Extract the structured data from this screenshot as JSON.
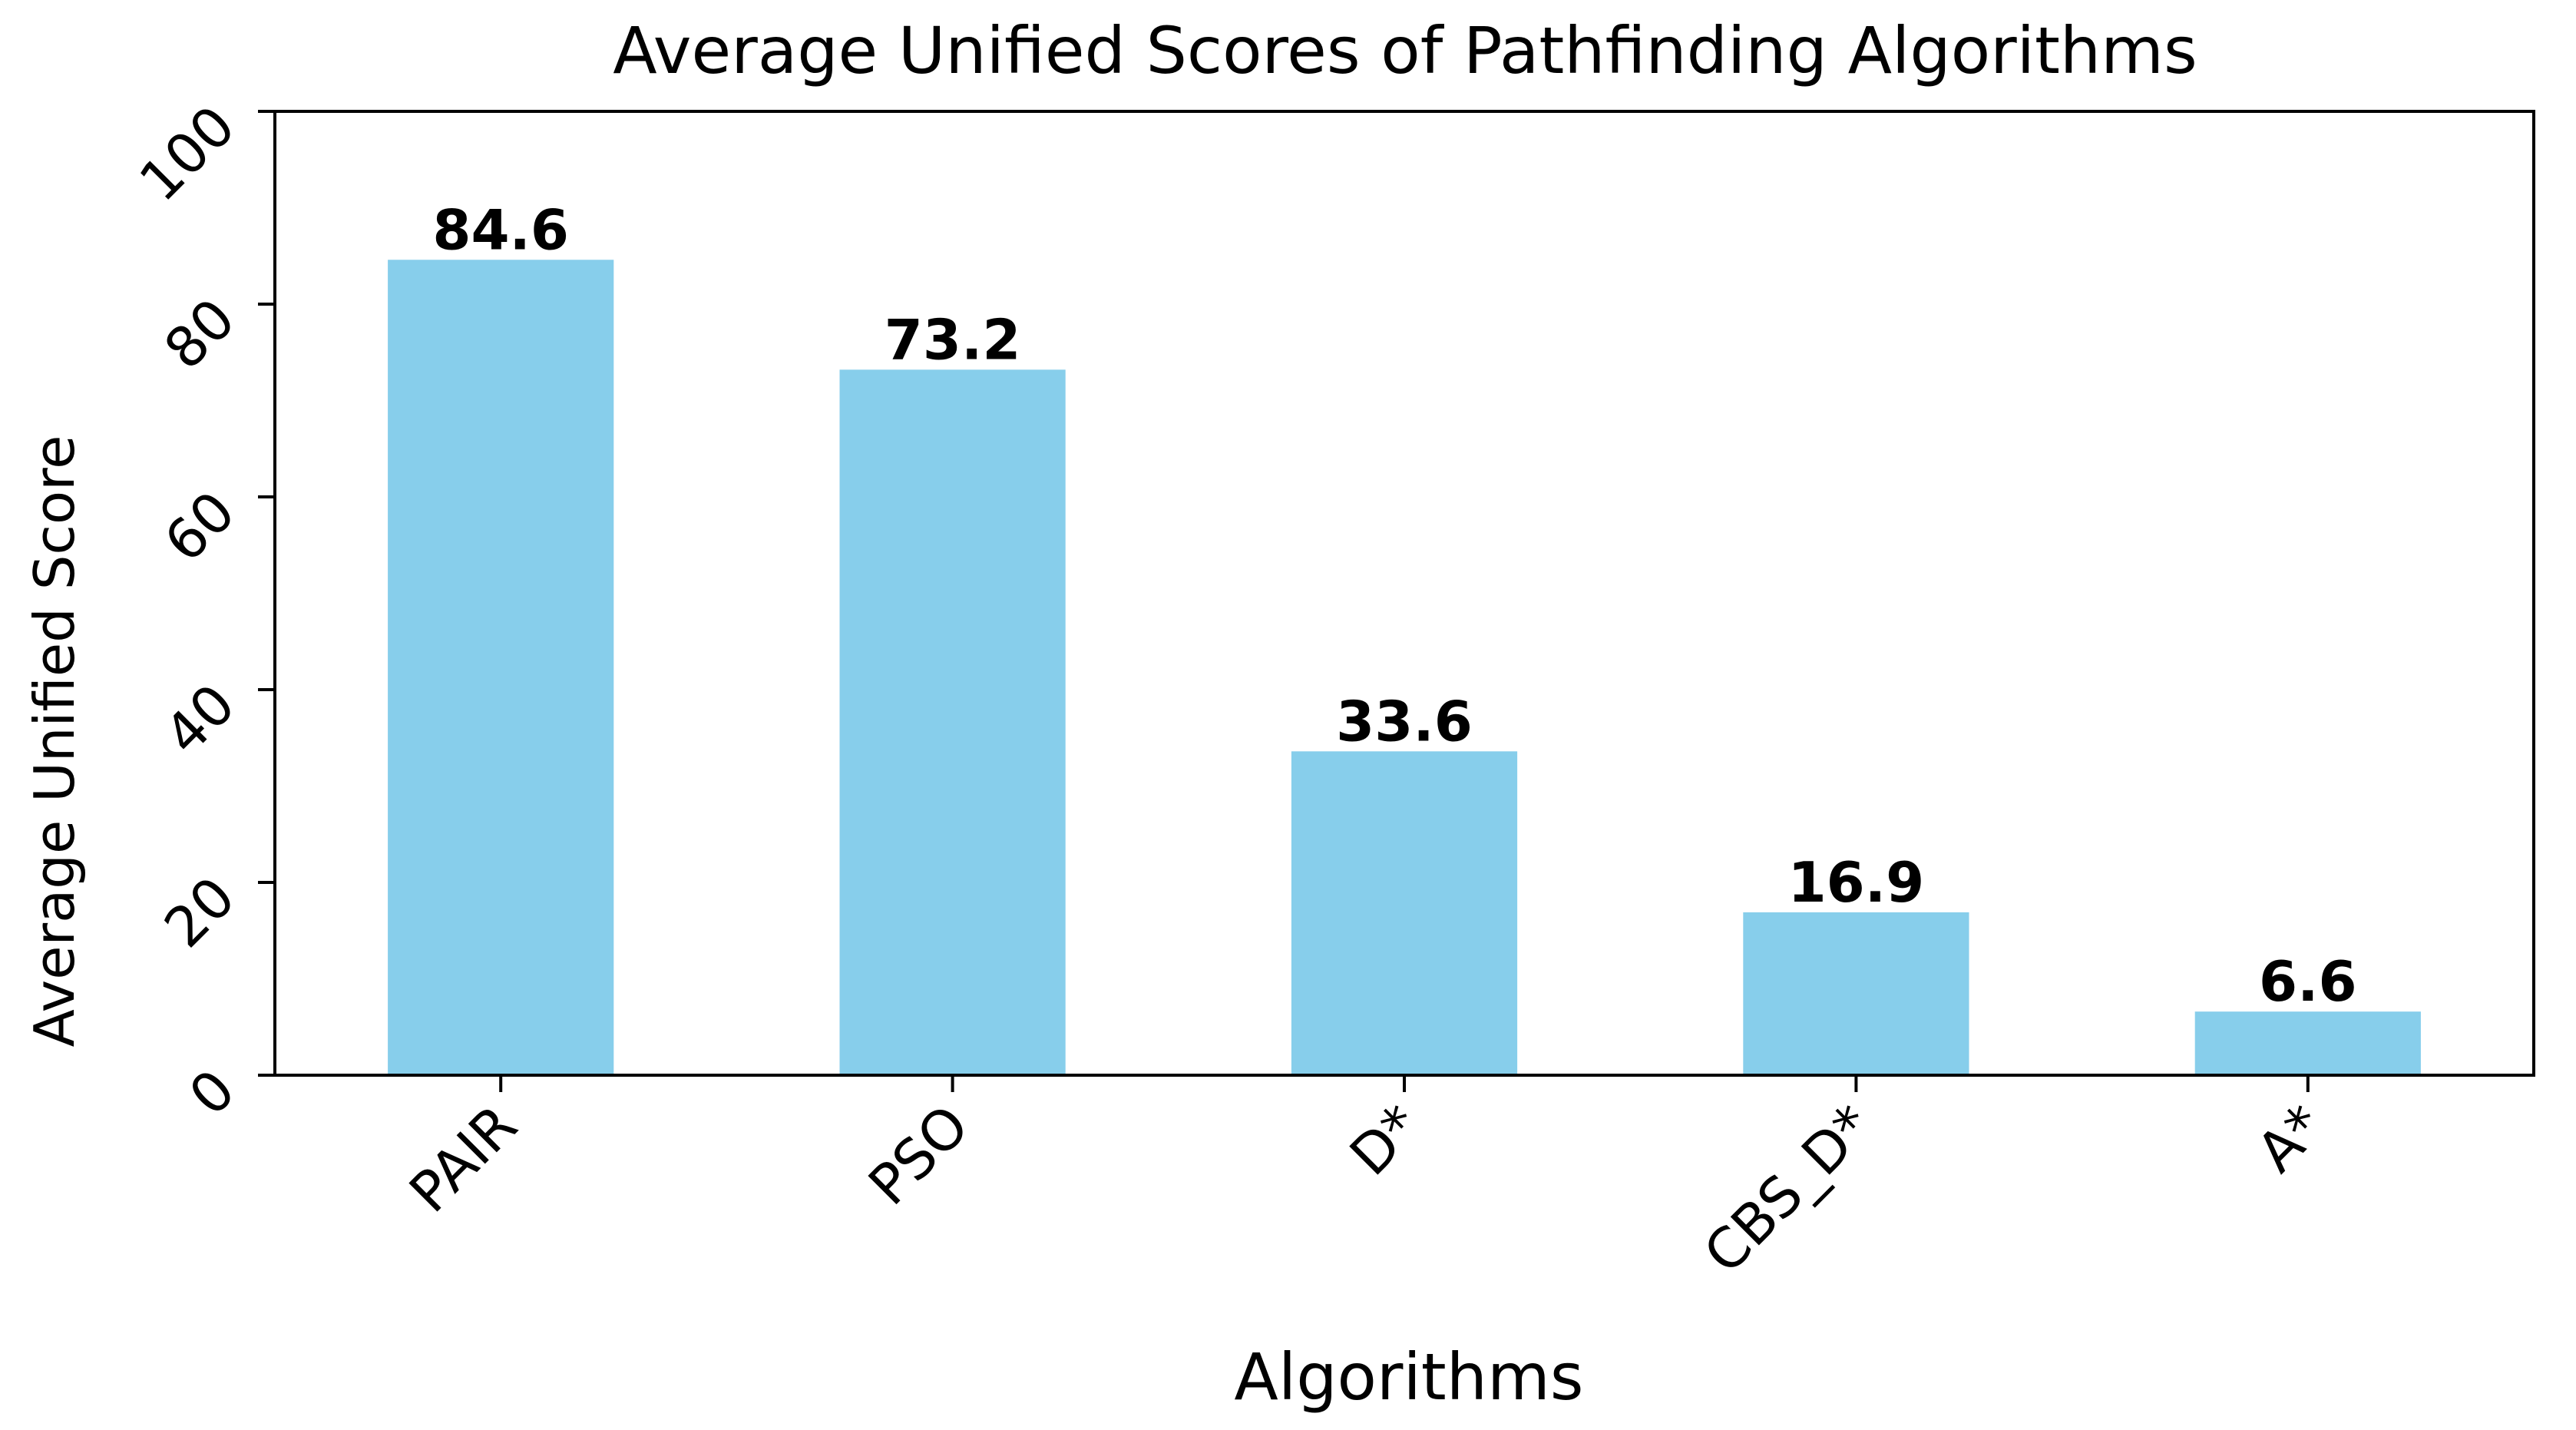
{
  "chart_data": {
    "type": "bar",
    "title": "Average Unified Scores of Pathfinding Algorithms",
    "xlabel": "Algorithms",
    "ylabel": "Average Unified Score",
    "categories": [
      "PAIR",
      "PSO",
      "D*",
      "CBS_D*",
      "A*"
    ],
    "values": [
      84.6,
      73.2,
      33.6,
      16.9,
      6.6
    ],
    "data_labels": [
      "84.6",
      "73.2",
      "33.6",
      "16.9",
      "6.6"
    ],
    "ylim": [
      0,
      100
    ],
    "yticks": [
      0,
      20,
      40,
      60,
      80,
      100
    ],
    "ytick_labels": [
      "0",
      "20",
      "40",
      "60",
      "80",
      "100"
    ],
    "bar_color": "#87CEEB",
    "grid": false,
    "legend": "none",
    "xtick_rotation_deg": 45,
    "ytick_rotation_deg": 45
  }
}
